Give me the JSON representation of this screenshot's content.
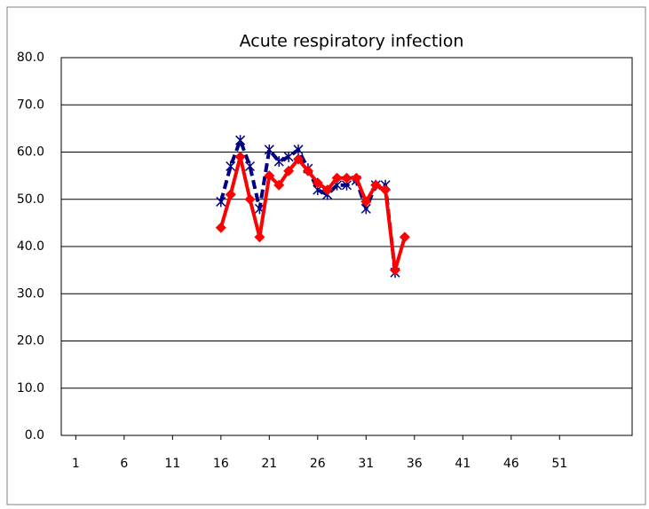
{
  "chart_data": {
    "type": "line",
    "title": "Acute respiratory infection",
    "x": [
      16,
      17,
      18,
      19,
      20,
      21,
      22,
      23,
      24,
      25,
      26,
      27,
      28,
      29,
      30,
      31,
      32,
      33,
      34,
      35
    ],
    "series": [
      {
        "color": "#000080",
        "dash": true,
        "marker": "asterisk",
        "values": [
          49.5,
          57,
          62.5,
          57,
          48,
          60.5,
          58,
          59,
          60.5,
          56.5,
          52,
          51,
          53,
          53,
          54,
          48,
          53,
          53,
          34.5,
          null
        ]
      },
      {
        "color": "#ff0000",
        "dash": false,
        "marker": "diamond",
        "values": [
          44,
          51,
          59,
          50,
          42,
          55,
          53,
          56,
          58.5,
          56,
          53.5,
          52,
          54.5,
          54.5,
          54.5,
          49.5,
          53,
          52,
          35,
          42
        ]
      }
    ],
    "xlim": [
      -0.5,
      58.5
    ],
    "xticks": [
      1,
      6,
      11,
      16,
      21,
      26,
      31,
      36,
      41,
      46,
      51
    ],
    "ylim": [
      0,
      80
    ],
    "yticks": [
      {
        "value": 0,
        "label": "0.0"
      },
      {
        "value": 10,
        "label": "10.0"
      },
      {
        "value": 20,
        "label": "20.0"
      },
      {
        "value": 30,
        "label": "30.0"
      },
      {
        "value": 40,
        "label": "40.0"
      },
      {
        "value": 50,
        "label": "50.0"
      },
      {
        "value": 60,
        "label": "60.0"
      },
      {
        "value": 70,
        "label": "70.0"
      },
      {
        "value": 80,
        "label": "80.0"
      }
    ],
    "grid": true
  }
}
